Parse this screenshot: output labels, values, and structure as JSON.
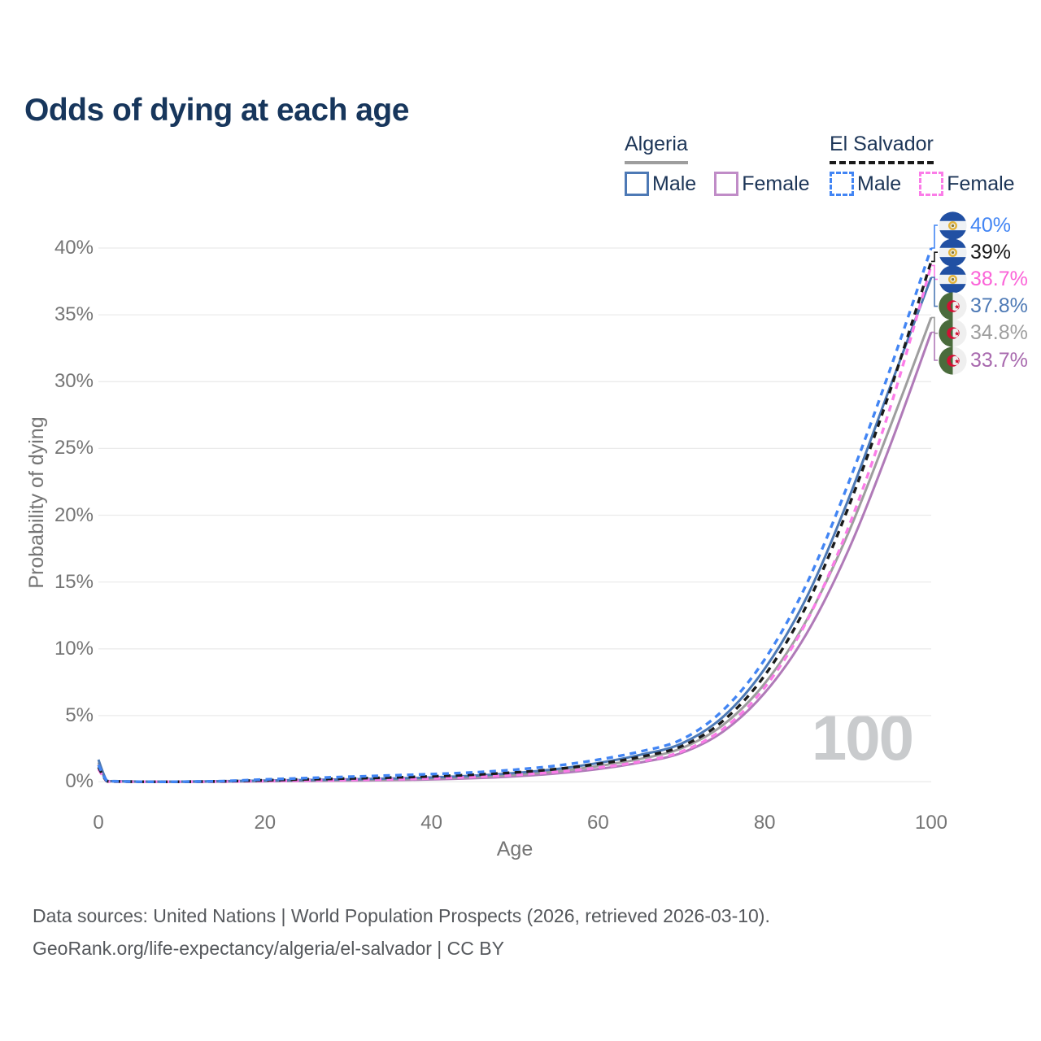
{
  "title": "Odds of dying at each age",
  "legend": {
    "groups": [
      {
        "label": "Algeria",
        "dashed": false,
        "underline_color": "#9e9e9e",
        "items": [
          {
            "label": "Male",
            "color": "#4d79b5",
            "dashed": false
          },
          {
            "label": "Female",
            "color": "#c08cc7",
            "dashed": false
          }
        ]
      },
      {
        "label": "El Salvador",
        "dashed": true,
        "underline_color": "#1a1a1a",
        "items": [
          {
            "label": "Male",
            "color": "#4285f4",
            "dashed": true
          },
          {
            "label": "Female",
            "color": "#fb7ce8",
            "dashed": true
          }
        ]
      }
    ]
  },
  "chart_data": {
    "type": "line",
    "title": "Odds of dying at each age",
    "xlabel": "Age",
    "ylabel": "Probability of dying",
    "xlim": [
      0,
      100
    ],
    "ylim_percent": [
      0,
      42
    ],
    "grid": "horizontal-only",
    "legend_position": "top-right",
    "x_ticks": [
      {
        "age": 0,
        "label": "0"
      },
      {
        "age": 20,
        "label": "20"
      },
      {
        "age": 40,
        "label": "40"
      },
      {
        "age": 60,
        "label": "60"
      },
      {
        "age": 80,
        "label": "80"
      },
      {
        "age": 100,
        "label": "100"
      }
    ],
    "y_ticks": [
      {
        "pct": 0,
        "label": "0%"
      },
      {
        "pct": 5,
        "label": "5%"
      },
      {
        "pct": 10,
        "label": "10%"
      },
      {
        "pct": 15,
        "label": "15%"
      },
      {
        "pct": 20,
        "label": "20%"
      },
      {
        "pct": 25,
        "label": "25%"
      },
      {
        "pct": 30,
        "label": "30%"
      },
      {
        "pct": 35,
        "label": "35%"
      },
      {
        "pct": 40,
        "label": "40%"
      }
    ],
    "ages": [
      0,
      1,
      2,
      5,
      10,
      15,
      20,
      25,
      30,
      35,
      40,
      45,
      50,
      55,
      60,
      65,
      70,
      75,
      80,
      85,
      90,
      95,
      100
    ],
    "series": [
      {
        "name": "Algeria Female",
        "country": "Algeria",
        "sex": "Female",
        "dashed": false,
        "color": "#b07ab8",
        "label_color": "#a869ae",
        "end_label": "33.7%",
        "values_pct": [
          1.35,
          0.11,
          0.08,
          0.045,
          0.045,
          0.055,
          0.08,
          0.1,
          0.13,
          0.17,
          0.22,
          0.31,
          0.45,
          0.67,
          1.0,
          1.48,
          2.2,
          3.8,
          6.7,
          11.1,
          17.3,
          25.1,
          33.7
        ]
      },
      {
        "name": "Algeria Both sexes",
        "country": "Algeria",
        "sex": "Both",
        "dashed": false,
        "color": "#9e9e9e",
        "label_color": "#9e9e9e",
        "end_label": "34.8%",
        "values_pct": [
          1.5,
          0.13,
          0.09,
          0.05,
          0.05,
          0.07,
          0.11,
          0.14,
          0.17,
          0.22,
          0.29,
          0.4,
          0.57,
          0.83,
          1.22,
          1.75,
          2.55,
          4.3,
          7.4,
          12.1,
          18.6,
          26.5,
          34.8
        ]
      },
      {
        "name": "Algeria Male",
        "country": "Algeria",
        "sex": "Male",
        "dashed": false,
        "color": "#4d79b5",
        "label_color": "#4d79b5",
        "end_label": "37.8%",
        "values_pct": [
          1.7,
          0.15,
          0.1,
          0.06,
          0.06,
          0.09,
          0.14,
          0.18,
          0.23,
          0.29,
          0.37,
          0.5,
          0.7,
          1.0,
          1.45,
          2.05,
          2.9,
          4.9,
          8.5,
          13.8,
          21.1,
          29.5,
          37.8
        ]
      },
      {
        "name": "El Salvador Female",
        "country": "El Salvador",
        "sex": "Female",
        "dashed": true,
        "color": "#fb7ce8",
        "label_color": "#fb63d8",
        "end_label": "38.7%",
        "values_pct": [
          1.0,
          0.09,
          0.06,
          0.035,
          0.035,
          0.06,
          0.1,
          0.14,
          0.18,
          0.23,
          0.3,
          0.41,
          0.56,
          0.78,
          1.1,
          1.55,
          2.3,
          4.0,
          7.1,
          12.0,
          19.0,
          27.9,
          38.7
        ]
      },
      {
        "name": "El Salvador Both sexes",
        "country": "El Salvador",
        "sex": "Both",
        "dashed": true,
        "color": "#1a1a1a",
        "label_color": "#1a1a1a",
        "end_label": "39%",
        "values_pct": [
          1.15,
          0.1,
          0.07,
          0.04,
          0.04,
          0.08,
          0.16,
          0.23,
          0.29,
          0.36,
          0.45,
          0.57,
          0.74,
          1.0,
          1.38,
          1.9,
          2.7,
          4.6,
          8.0,
          13.2,
          20.5,
          29.2,
          39.0
        ]
      },
      {
        "name": "El Salvador Male",
        "country": "El Salvador",
        "sex": "Male",
        "dashed": true,
        "color": "#4285f4",
        "label_color": "#4285f4",
        "end_label": "40%",
        "values_pct": [
          1.3,
          0.12,
          0.08,
          0.05,
          0.05,
          0.1,
          0.22,
          0.32,
          0.42,
          0.52,
          0.62,
          0.75,
          0.95,
          1.25,
          1.7,
          2.3,
          3.2,
          5.4,
          9.2,
          14.8,
          22.3,
          30.8,
          40.0
        ]
      }
    ]
  },
  "watermark": "100",
  "footer": {
    "line1": "Data sources: United Nations | World Population Prospects (2026, retrieved 2026-03-10).",
    "line2": "GeoRank.org/life-expectancy/algeria/el-salvador | CC BY"
  },
  "colors": {
    "grid": "#ebebeb",
    "axis_text": "#757575",
    "title_text": "#17365c",
    "watermark": "#c9cbcd",
    "footer_text": "#55585c"
  },
  "flags": {
    "el_salvador": {
      "band_blue": "#2150a3",
      "band_white": "#eef1f4",
      "emblem_gold": "#e3b53e",
      "emblem_center": "#8a7a33"
    },
    "algeria": {
      "green": "#4a6b3c",
      "white": "#efefef",
      "red": "#d21034"
    }
  }
}
